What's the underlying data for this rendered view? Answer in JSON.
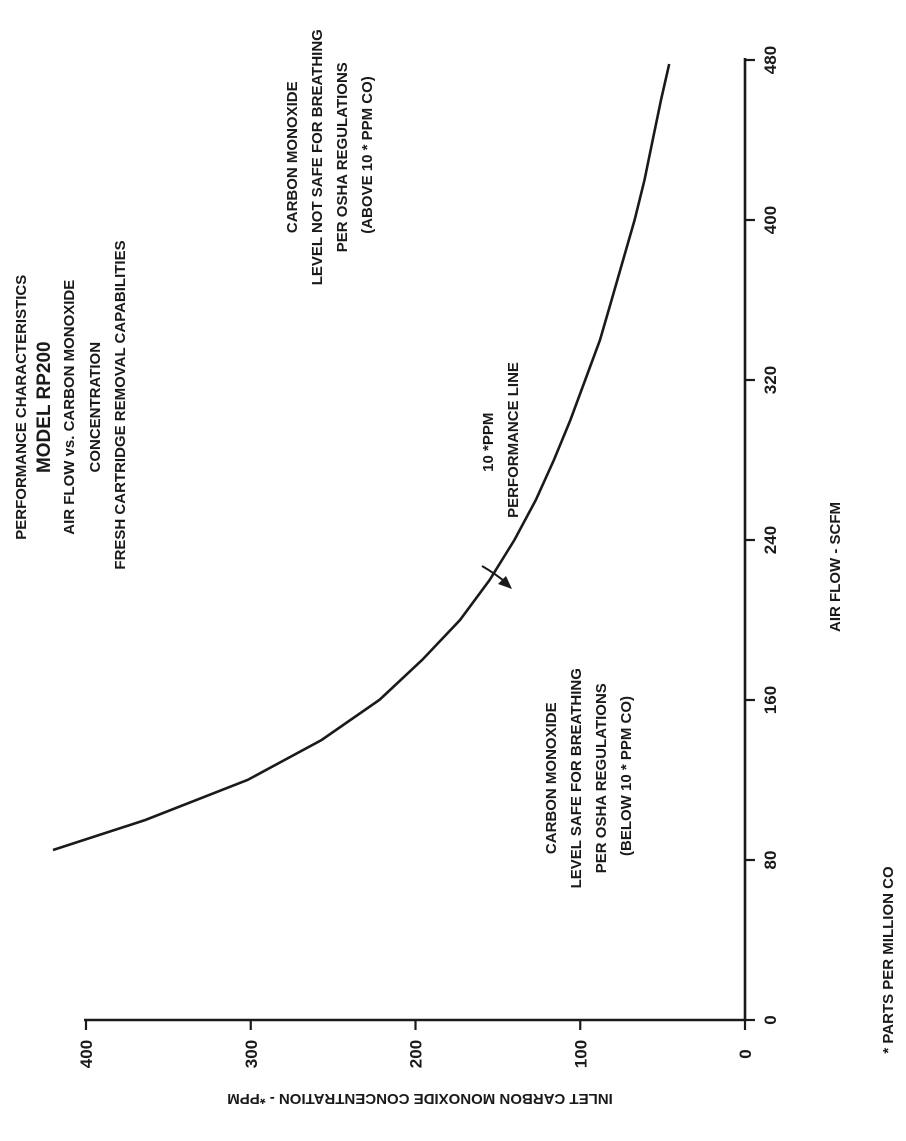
{
  "chart_data": {
    "type": "line",
    "title_lines": [
      "PERFORMANCE CHARACTERISTICS",
      "MODEL RP200",
      "AIR FLOW vs. CARBON MONOXIDE",
      "CONCENTRATION",
      "FRESH CARTRIDGE REMOVAL CAPABILITIES"
    ],
    "xlabel": "AIR FLOW - SCFM",
    "ylabel": "INLET CARBON MONOXIDE CONCENTRATION - *PPM",
    "xlim": [
      0,
      480
    ],
    "ylim": [
      0,
      400
    ],
    "x_ticks": [
      "0",
      "80",
      "160",
      "240",
      "320",
      "400",
      "480"
    ],
    "y_ticks": [
      "0",
      "100",
      "200",
      "300",
      "400"
    ],
    "series": [
      {
        "x": [
          85,
          100,
          120,
          140,
          160,
          180,
          200,
          220,
          240,
          260,
          280,
          300,
          320,
          340,
          360,
          380,
          400,
          420,
          440,
          460,
          478
        ],
        "y": [
          420,
          364,
          302,
          257,
          222,
          196,
          173,
          155,
          140,
          127,
          116,
          106,
          97,
          88,
          81,
          74,
          67,
          61,
          56,
          51,
          46
        ]
      }
    ],
    "annotations": {
      "not_safe": [
        "CARBON MONOXIDE",
        "LEVEL NOT SAFE FOR BREATHING",
        "PER OSHA REGULATIONS",
        "(ABOVE 10 * PPM CO)"
      ],
      "safe": [
        "CARBON MONOXIDE",
        "LEVEL SAFE FOR BREATHING",
        "PER OSHA REGULATIONS",
        "(BELOW 10 * PPM CO)"
      ],
      "performance_line": [
        "10 *PPM",
        "PERFORMANCE LINE"
      ]
    },
    "footnote": "* PARTS PER MILLION CO",
    "grid": false
  }
}
